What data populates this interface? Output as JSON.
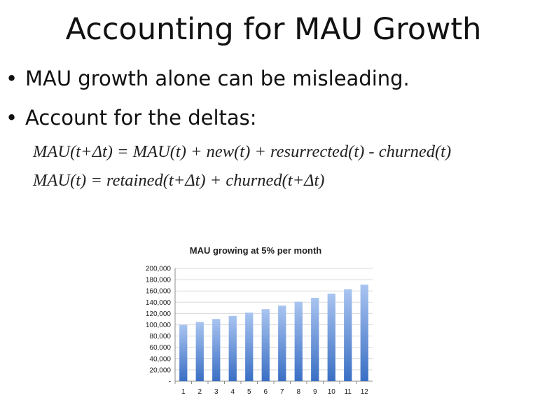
{
  "slide": {
    "title": "Accounting for MAU Growth",
    "bullets": [
      "MAU growth alone can be misleading.",
      "Account for the deltas:"
    ],
    "bullet_glyph": "•",
    "formulas": [
      "MAU(t+Δt) = MAU(t) + new(t) + resurrected(t) - churned(t)",
      "MAU(t) = retained(t+Δt) + churned(t+Δt)"
    ]
  },
  "chart_data": {
    "type": "bar",
    "title": "MAU growing at 5% per month",
    "xlabel": "",
    "ylabel": "",
    "categories": [
      "1",
      "2",
      "3",
      "4",
      "5",
      "6",
      "7",
      "8",
      "9",
      "10",
      "11",
      "12"
    ],
    "values": [
      100000,
      105000,
      110250,
      115763,
      121551,
      127628,
      134010,
      140710,
      147746,
      155133,
      162889,
      171034
    ],
    "ylim": [
      0,
      200000
    ],
    "yticks": [
      0,
      20000,
      40000,
      60000,
      80000,
      100000,
      120000,
      140000,
      160000,
      180000,
      200000
    ],
    "ytick_labels": [
      "-",
      "20,000",
      "40,000",
      "60,000",
      "80,000",
      "100,000",
      "120,000",
      "140,000",
      "160,000",
      "180,000",
      "200,000"
    ],
    "grid": true,
    "legend": "none",
    "colors": {
      "bar_top": "#a9c4f0",
      "bar_bottom": "#3a6fc4",
      "grid": "#d9d9d9",
      "axis": "#8c8c8c"
    }
  }
}
